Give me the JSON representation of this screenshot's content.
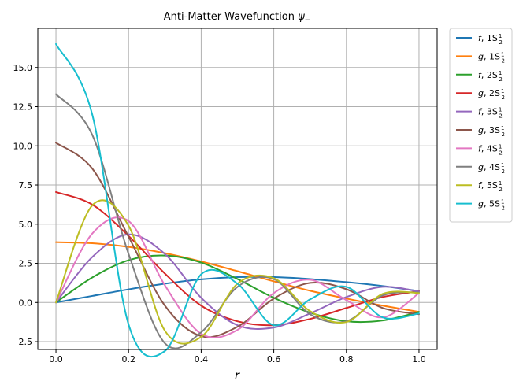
{
  "chart_data": {
    "type": "line",
    "title": "Anti-Matter Wavefunction ψ₋",
    "title_main": "Anti-Matter Wavefunction ",
    "title_symbol": "ψ",
    "title_sub": "−",
    "xlabel": "r",
    "ylabel": "",
    "xlim": [
      -0.05,
      1.05
    ],
    "ylim": [
      -3.0,
      17.5
    ],
    "xticks": [
      0.0,
      0.2,
      0.4,
      0.6,
      0.8,
      1.0
    ],
    "xtick_labels": [
      "0.0",
      "0.2",
      "0.4",
      "0.6",
      "0.8",
      "1.0"
    ],
    "yticks": [
      -2.5,
      0.0,
      2.5,
      5.0,
      7.5,
      10.0,
      12.5,
      15.0
    ],
    "ytick_labels": [
      "−2.5",
      "0.0",
      "2.5",
      "5.0",
      "7.5",
      "10.0",
      "12.5",
      "15.0"
    ],
    "grid": true,
    "legend_position": "outside-right-top",
    "series": [
      {
        "name": "f, 1S½",
        "func": "f",
        "state": "1S",
        "j_num": "1",
        "j_den": "2",
        "color": "#1f77b4",
        "x": [
          0,
          0.1,
          0.2,
          0.3,
          0.4,
          0.5,
          0.6,
          0.7,
          0.8,
          0.9,
          1.0
        ],
        "y": [
          0,
          0.42,
          0.84,
          1.2,
          1.48,
          1.62,
          1.62,
          1.5,
          1.3,
          1.05,
          0.73
        ]
      },
      {
        "name": "g, 1S½",
        "func": "g",
        "state": "1S",
        "j_num": "1",
        "j_den": "2",
        "color": "#ff7f0e",
        "x": [
          0,
          0.1,
          0.2,
          0.3,
          0.4,
          0.5,
          0.6,
          0.7,
          0.8,
          0.9,
          1.0
        ],
        "y": [
          3.85,
          3.78,
          3.55,
          3.15,
          2.62,
          2.0,
          1.35,
          0.75,
          0.25,
          -0.2,
          -0.6
        ]
      },
      {
        "name": "f, 2S½",
        "func": "f",
        "state": "2S",
        "j_num": "1",
        "j_den": "2",
        "color": "#2ca02c",
        "x": [
          0,
          0.1,
          0.2,
          0.3,
          0.4,
          0.5,
          0.6,
          0.7,
          0.8,
          0.9,
          1.0
        ],
        "y": [
          0,
          1.6,
          2.7,
          3.0,
          2.55,
          1.5,
          0.3,
          -0.65,
          -1.2,
          -1.15,
          -0.6
        ]
      },
      {
        "name": "g, 2S½",
        "func": "g",
        "state": "2S",
        "j_num": "1",
        "j_den": "2",
        "color": "#d62728",
        "x": [
          0,
          0.1,
          0.2,
          0.3,
          0.4,
          0.5,
          0.6,
          0.7,
          0.8,
          0.9,
          1.0
        ],
        "y": [
          7.05,
          6.25,
          4.25,
          1.85,
          -0.2,
          -1.2,
          -1.45,
          -1.05,
          -0.35,
          0.35,
          0.72
        ]
      },
      {
        "name": "f, 3S½",
        "func": "f",
        "state": "3S",
        "j_num": "1",
        "j_den": "2",
        "color": "#9467bd",
        "x": [
          0,
          0.1,
          0.2,
          0.3,
          0.4,
          0.5,
          0.6,
          0.7,
          0.8,
          0.9,
          1.0
        ],
        "y": [
          0,
          2.9,
          4.35,
          3.1,
          0.3,
          -1.45,
          -1.6,
          -0.7,
          0.35,
          1.0,
          0.7
        ]
      },
      {
        "name": "g, 3S½",
        "func": "g",
        "state": "3S",
        "j_num": "1",
        "j_den": "2",
        "color": "#8c564b",
        "x": [
          0,
          0.1,
          0.2,
          0.3,
          0.4,
          0.5,
          0.6,
          0.7,
          0.8,
          0.9,
          1.0
        ],
        "y": [
          10.2,
          8.55,
          4.2,
          -0.2,
          -2.15,
          -1.55,
          0.25,
          1.25,
          0.85,
          -0.35,
          -0.75
        ]
      },
      {
        "name": "f, 4S½",
        "func": "f",
        "state": "4S",
        "j_num": "1",
        "j_den": "2",
        "color": "#e377c2",
        "x": [
          0,
          0.1,
          0.2,
          0.3,
          0.4,
          0.5,
          0.6,
          0.7,
          0.8,
          0.9,
          1.0
        ],
        "y": [
          0,
          4.4,
          5.2,
          1.1,
          -2.0,
          -1.75,
          0.6,
          1.45,
          0.15,
          -0.95,
          0.6
        ]
      },
      {
        "name": "g, 4S½",
        "func": "g",
        "state": "4S",
        "j_num": "1",
        "j_den": "2",
        "color": "#7f7f7f",
        "x": [
          0,
          0.1,
          0.2,
          0.3,
          0.4,
          0.5,
          0.6,
          0.7,
          0.8,
          0.9,
          1.0
        ],
        "y": [
          13.3,
          10.7,
          3.1,
          -2.6,
          -1.9,
          1.0,
          1.5,
          -0.75,
          -1.2,
          0.45,
          0.65
        ]
      },
      {
        "name": "f, 5S½",
        "func": "f",
        "state": "5S",
        "j_num": "1",
        "j_den": "2",
        "color": "#bcbd22",
        "x": [
          0,
          0.1,
          0.2,
          0.3,
          0.4,
          0.5,
          0.6,
          0.7,
          0.8,
          0.9,
          1.0
        ],
        "y": [
          0,
          6.2,
          4.9,
          -1.8,
          -2.2,
          1.2,
          1.55,
          -0.55,
          -1.25,
          0.55,
          0.6
        ]
      },
      {
        "name": "g, 5S½",
        "func": "g",
        "state": "5S",
        "j_num": "1",
        "j_den": "2",
        "color": "#17becf",
        "x": [
          0,
          0.1,
          0.2,
          0.3,
          0.4,
          0.5,
          0.6,
          0.7,
          0.8,
          0.9,
          1.0
        ],
        "y": [
          16.5,
          12.0,
          -1.4,
          -3.1,
          1.8,
          1.2,
          -1.45,
          0.2,
          1.0,
          -0.95,
          -0.7
        ]
      }
    ]
  }
}
